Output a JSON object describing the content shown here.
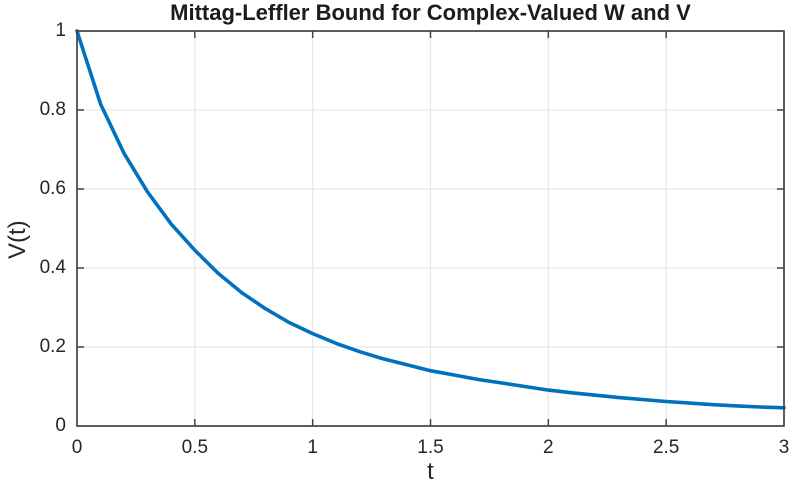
{
  "figure": {
    "title": "Mittag-Leffler Bound for Complex-Valued W and V"
  },
  "chart_data": {
    "type": "line",
    "title": "Mittag-Leffler Bound for Complex-Valued W and V",
    "xlabel": "t",
    "ylabel": "V(t)",
    "xlim": [
      0,
      3
    ],
    "ylim": [
      0,
      1
    ],
    "xticks": [
      0,
      0.5,
      1,
      1.5,
      2,
      2.5,
      3
    ],
    "xtick_labels": [
      "0",
      "0.5",
      "1",
      "1.5",
      "2",
      "2.5",
      "3"
    ],
    "yticks": [
      0,
      0.2,
      0.4,
      0.6,
      0.8,
      1
    ],
    "ytick_labels": [
      "0",
      "0.2",
      "0.4",
      "0.6",
      "0.8",
      "1"
    ],
    "grid": true,
    "legend": "none",
    "series": [
      {
        "name": "V(t)",
        "color": "#0072BD",
        "line_width": 3.6,
        "x": [
          0,
          0.1,
          0.2,
          0.3,
          0.4,
          0.5,
          0.6,
          0.7,
          0.8,
          0.9,
          1,
          1.1,
          1.2,
          1.3,
          1.4,
          1.5,
          1.6,
          1.7,
          1.8,
          1.9,
          2,
          2.1,
          2.2,
          2.3,
          2.4,
          2.5,
          2.6,
          2.7,
          2.8,
          2.9,
          3
        ],
        "y": [
          1,
          0.815,
          0.69,
          0.592,
          0.511,
          0.445,
          0.386,
          0.337,
          0.297,
          0.262,
          0.234,
          0.209,
          0.188,
          0.17,
          0.155,
          0.14,
          0.129,
          0.118,
          0.109,
          0.1,
          0.091,
          0.084,
          0.078,
          0.072,
          0.067,
          0.062,
          0.058,
          0.054,
          0.051,
          0.048,
          0.046
        ]
      }
    ]
  },
  "style": {
    "curve_color": "#0072BD",
    "grid_color": "#e7e7e7",
    "axis_color": "#424242",
    "tick_text_color": "#262626",
    "title_color": "#1c1c1c",
    "background": "#ffffff"
  }
}
